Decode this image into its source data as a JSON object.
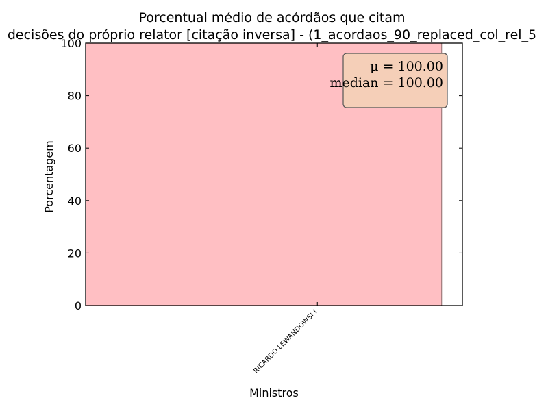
{
  "chart_data": {
    "type": "bar",
    "title_line1": "Porcentual médio de acórdãos que citam",
    "title_line2": "decisões do próprio relator [citação inversa] - (1_acordaos_90_replaced_col_rel_5",
    "xlabel": "Ministros",
    "ylabel": "Porcentagem",
    "categories": [
      "RICARDO LEWANDOWSKI"
    ],
    "values": [
      100
    ],
    "ylim": [
      0,
      100
    ],
    "yticks": [
      0,
      20,
      40,
      60,
      80,
      100
    ],
    "bar_color": "#ffbfc3",
    "bar_edge_color": "#8b6b6b",
    "stats_box": {
      "mu_label": "μ = 100.00",
      "median_label": "median = 100.00",
      "fill": "#f5cfb8",
      "border": "#555555"
    },
    "grid": false,
    "legend": "none"
  }
}
